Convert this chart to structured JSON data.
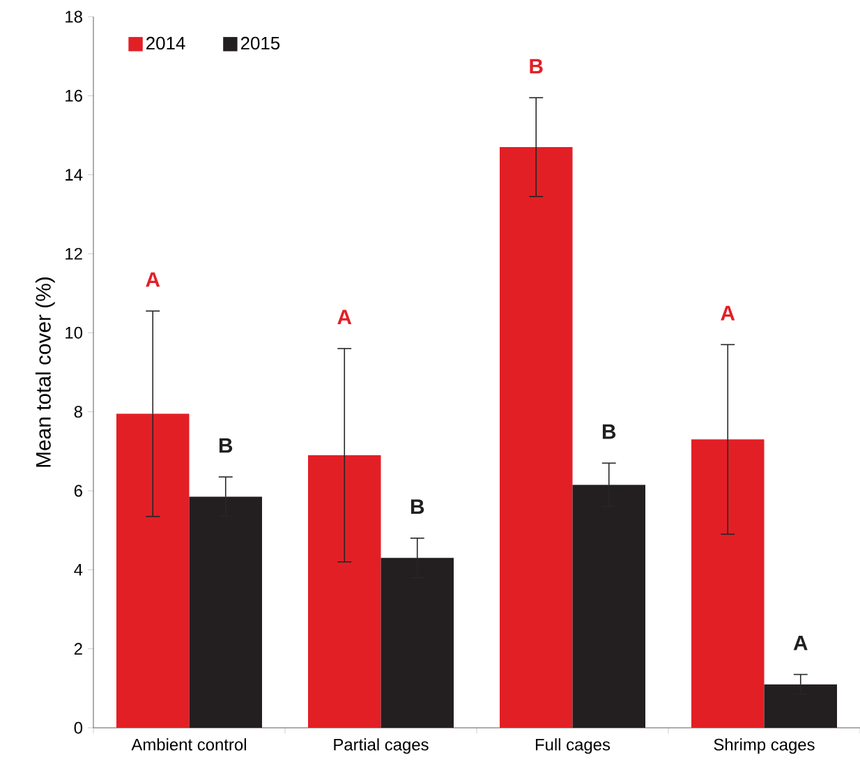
{
  "chart_data": {
    "type": "bar",
    "ylabel": "Mean total cover (%)",
    "categories": [
      "Ambient control",
      "Partial cages",
      "Full cages",
      "Shrimp cages"
    ],
    "series": [
      {
        "name": "2014",
        "color": "#e31f26",
        "values": [
          7.95,
          6.9,
          14.7,
          7.3
        ],
        "errors": [
          2.6,
          2.7,
          1.25,
          2.4
        ]
      },
      {
        "name": "2015",
        "color": "#231f20",
        "values": [
          5.85,
          4.3,
          6.15,
          1.1
        ],
        "errors": [
          0.5,
          0.5,
          0.55,
          0.25
        ]
      }
    ],
    "ylim": [
      0,
      18
    ],
    "yticks": [
      0,
      2,
      4,
      6,
      8,
      10,
      12,
      14,
      16,
      18
    ],
    "legend": "top left",
    "grid": false,
    "annotations": [
      "A",
      "A",
      "B",
      "A",
      "B",
      "B",
      "B",
      "A"
    ]
  }
}
